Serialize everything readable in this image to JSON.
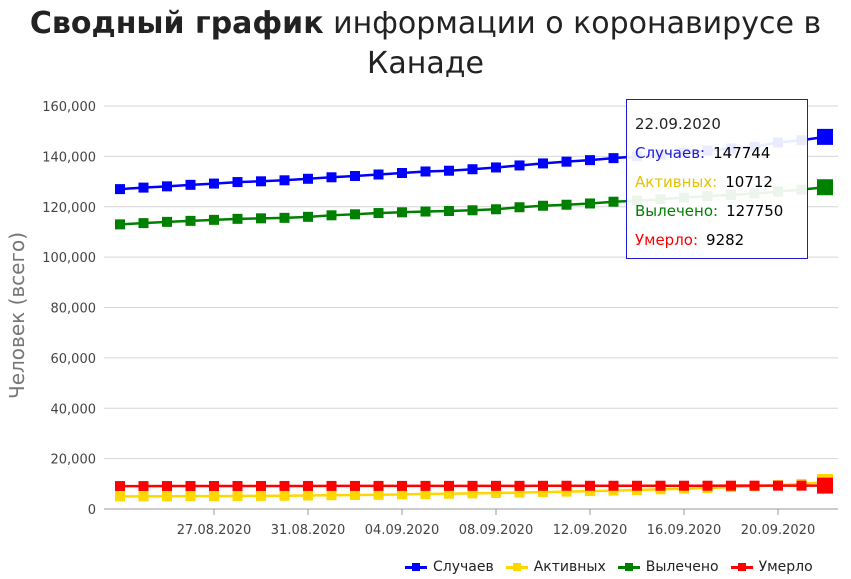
{
  "title": {
    "bold": "Сводный график",
    "rest": "информации о коронавирусе в Канаде"
  },
  "chart_data": {
    "type": "line",
    "ylabel": "Человек (всего)",
    "xlabel": "",
    "ylim": [
      0,
      160000
    ],
    "yticks": [
      "0",
      "20,000",
      "40,000",
      "60,000",
      "80,000",
      "100,000",
      "120,000",
      "140,000",
      "160,000"
    ],
    "grid": true,
    "legend_position": "bottom-right",
    "x": [
      "23.08.2020",
      "24.08.2020",
      "25.08.2020",
      "26.08.2020",
      "27.08.2020",
      "28.08.2020",
      "29.08.2020",
      "30.08.2020",
      "31.08.2020",
      "01.09.2020",
      "02.09.2020",
      "03.09.2020",
      "04.09.2020",
      "05.09.2020",
      "06.09.2020",
      "07.09.2020",
      "08.09.2020",
      "09.09.2020",
      "10.09.2020",
      "11.09.2020",
      "12.09.2020",
      "13.09.2020",
      "14.09.2020",
      "15.09.2020",
      "16.09.2020",
      "17.09.2020",
      "18.09.2020",
      "19.09.2020",
      "20.09.2020",
      "21.09.2020",
      "22.09.2020"
    ],
    "xtick_labels": [
      "27.08.2020",
      "31.08.2020",
      "04.09.2020",
      "08.09.2020",
      "12.09.2020",
      "16.09.2020",
      "20.09.2020"
    ],
    "series": [
      {
        "name": "Случаев",
        "color": "#0000ff",
        "values": [
          127000,
          127600,
          128100,
          128700,
          129200,
          129800,
          130100,
          130500,
          131100,
          131700,
          132200,
          132800,
          133400,
          134000,
          134300,
          134900,
          135600,
          136400,
          137200,
          137900,
          138500,
          139300,
          140000,
          140700,
          141500,
          142300,
          143100,
          143800,
          145500,
          146400,
          147744
        ]
      },
      {
        "name": "Активных",
        "color": "#ffd700",
        "values": [
          5000,
          5000,
          5050,
          5100,
          5100,
          5150,
          5200,
          5250,
          5350,
          5450,
          5550,
          5650,
          5800,
          5950,
          6050,
          6200,
          6350,
          6500,
          6700,
          6900,
          7100,
          7300,
          7550,
          7800,
          8050,
          8350,
          8700,
          9050,
          9450,
          9950,
          10712
        ]
      },
      {
        "name": "Вылечено",
        "color": "#008000",
        "values": [
          113000,
          113500,
          114000,
          114400,
          114800,
          115200,
          115400,
          115600,
          116000,
          116600,
          117000,
          117500,
          117800,
          118100,
          118300,
          118600,
          119000,
          119800,
          120400,
          120800,
          121300,
          122000,
          122400,
          123000,
          123600,
          124200,
          124700,
          125300,
          126000,
          126800,
          127750
        ]
      },
      {
        "name": "Умерло",
        "color": "#ff0000",
        "values": [
          9100,
          9100,
          9110,
          9120,
          9130,
          9140,
          9140,
          9150,
          9150,
          9160,
          9160,
          9170,
          9170,
          9180,
          9180,
          9190,
          9200,
          9200,
          9210,
          9220,
          9220,
          9230,
          9230,
          9240,
          9240,
          9250,
          9260,
          9260,
          9270,
          9270,
          9282
        ]
      }
    ]
  },
  "tooltip": {
    "date": "22.09.2020",
    "rows": [
      {
        "label": "Случаев:",
        "value": "147744",
        "color": "#1b1bd6"
      },
      {
        "label": "Активных:",
        "value": "10712",
        "color": "#e6c200"
      },
      {
        "label": "Вылечено:",
        "value": "127750",
        "color": "#008000"
      },
      {
        "label": "Умерло:",
        "value": "9282",
        "color": "#ff0000"
      }
    ]
  }
}
